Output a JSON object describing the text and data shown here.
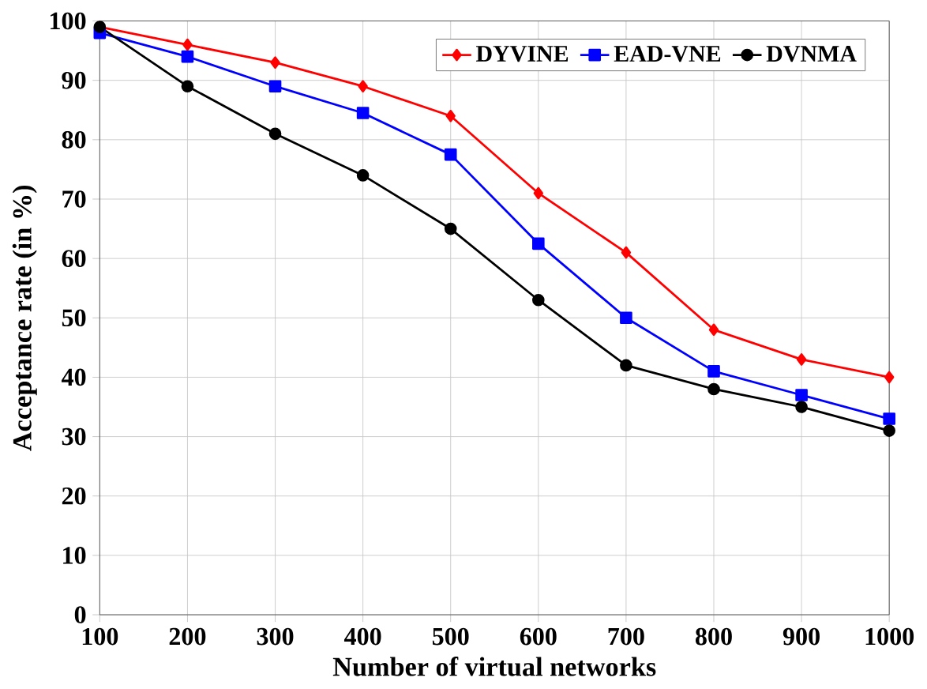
{
  "chart_data": {
    "type": "line",
    "xlabel": "Number of virtual networks",
    "ylabel": "Acceptance rate (in %)",
    "x": [
      100,
      200,
      300,
      400,
      500,
      600,
      700,
      800,
      900,
      1000
    ],
    "series": [
      {
        "name": "DYVINE",
        "color": "#ff0000",
        "marker": "diamond",
        "values": [
          99,
          96,
          93,
          89,
          84,
          71,
          61,
          48,
          43,
          40
        ]
      },
      {
        "name": "EAD-VNE",
        "color": "#0000ff",
        "marker": "square",
        "values": [
          98,
          94,
          89,
          84.5,
          77.5,
          62.5,
          50,
          41,
          37,
          33
        ]
      },
      {
        "name": "DVNMA",
        "color": "#000000",
        "marker": "circle",
        "values": [
          99,
          89,
          81,
          74,
          65,
          53,
          42,
          38,
          35,
          31
        ]
      }
    ],
    "xlim": [
      100,
      1000
    ],
    "xticks": [
      100,
      200,
      300,
      400,
      500,
      600,
      700,
      800,
      900,
      1000
    ],
    "ylim": [
      0,
      100
    ],
    "yticks": [
      0,
      10,
      20,
      30,
      40,
      50,
      60,
      70,
      80,
      90,
      100
    ],
    "grid": true,
    "legend": "top right",
    "line_style": "solid"
  }
}
